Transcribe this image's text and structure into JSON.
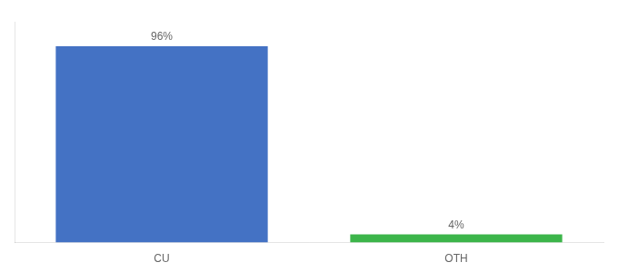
{
  "chart_data": {
    "type": "bar",
    "categories": [
      "CU",
      "OTH"
    ],
    "values": [
      96,
      4
    ],
    "value_labels": [
      "96%",
      "4%"
    ],
    "colors": [
      "#4472c4",
      "#3cb54a"
    ],
    "ylim": [
      0,
      108
    ],
    "data_labels": true,
    "tick_labels": "x",
    "grid": false
  }
}
